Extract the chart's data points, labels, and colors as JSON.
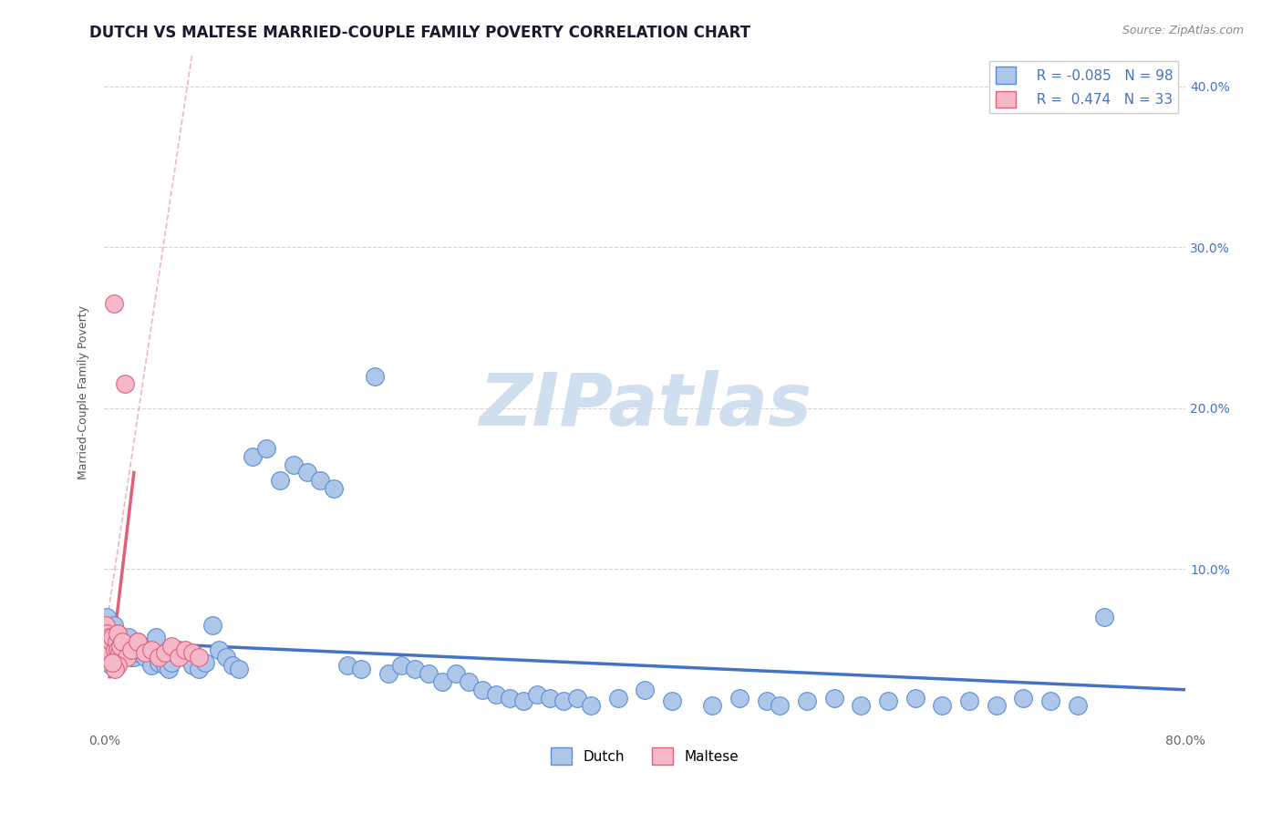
{
  "title": "DUTCH VS MALTESE MARRIED-COUPLE FAMILY POVERTY CORRELATION CHART",
  "source": "Source: ZipAtlas.com",
  "ylabel": "Married-Couple Family Poverty",
  "xlim": [
    0.0,
    0.8
  ],
  "ylim": [
    0.0,
    0.42
  ],
  "xticks": [
    0.0,
    0.1,
    0.2,
    0.3,
    0.4,
    0.5,
    0.6,
    0.7,
    0.8
  ],
  "xticklabels": [
    "0.0%",
    "",
    "",
    "",
    "",
    "",
    "",
    "",
    "80.0%"
  ],
  "yticks": [
    0.0,
    0.1,
    0.2,
    0.3,
    0.4
  ],
  "yticklabels_right": [
    "",
    "10.0%",
    "20.0%",
    "30.0%",
    "40.0%"
  ],
  "dutch_R": -0.085,
  "dutch_N": 98,
  "maltese_R": 0.474,
  "maltese_N": 33,
  "dutch_color": "#aec6e8",
  "dutch_edge_color": "#5b8dd9",
  "dutch_line_color": "#4472c4",
  "maltese_color": "#f5b8c8",
  "maltese_edge_color": "#e0607a",
  "maltese_line_color": "#e0607a",
  "diag_line_color": "#e8b0c0",
  "background_color": "#ffffff",
  "grid_color": "#d0d0d0",
  "title_fontsize": 12,
  "axis_label_fontsize": 9,
  "tick_fontsize": 10,
  "legend_fontsize": 11,
  "watermark_color": "#d0dff0",
  "dutch_x": [
    0.001,
    0.002,
    0.002,
    0.003,
    0.003,
    0.004,
    0.004,
    0.005,
    0.005,
    0.005,
    0.006,
    0.006,
    0.007,
    0.007,
    0.008,
    0.008,
    0.009,
    0.009,
    0.01,
    0.01,
    0.011,
    0.012,
    0.012,
    0.013,
    0.014,
    0.015,
    0.016,
    0.017,
    0.018,
    0.02,
    0.022,
    0.024,
    0.025,
    0.028,
    0.03,
    0.032,
    0.035,
    0.038,
    0.04,
    0.042,
    0.045,
    0.048,
    0.05,
    0.055,
    0.06,
    0.065,
    0.07,
    0.075,
    0.08,
    0.085,
    0.09,
    0.095,
    0.1,
    0.11,
    0.12,
    0.13,
    0.14,
    0.15,
    0.16,
    0.17,
    0.18,
    0.19,
    0.2,
    0.21,
    0.22,
    0.23,
    0.24,
    0.25,
    0.26,
    0.27,
    0.28,
    0.29,
    0.3,
    0.31,
    0.32,
    0.33,
    0.34,
    0.35,
    0.36,
    0.38,
    0.4,
    0.42,
    0.45,
    0.47,
    0.49,
    0.5,
    0.52,
    0.54,
    0.56,
    0.58,
    0.6,
    0.62,
    0.64,
    0.66,
    0.68,
    0.7,
    0.72,
    0.74
  ],
  "dutch_y": [
    0.065,
    0.06,
    0.07,
    0.055,
    0.058,
    0.062,
    0.045,
    0.06,
    0.04,
    0.055,
    0.05,
    0.058,
    0.065,
    0.05,
    0.06,
    0.055,
    0.058,
    0.05,
    0.052,
    0.06,
    0.058,
    0.052,
    0.055,
    0.058,
    0.052,
    0.048,
    0.055,
    0.05,
    0.058,
    0.045,
    0.045,
    0.048,
    0.055,
    0.05,
    0.045,
    0.048,
    0.04,
    0.058,
    0.042,
    0.045,
    0.04,
    0.038,
    0.042,
    0.05,
    0.045,
    0.04,
    0.038,
    0.042,
    0.065,
    0.05,
    0.045,
    0.04,
    0.038,
    0.17,
    0.175,
    0.155,
    0.165,
    0.16,
    0.155,
    0.15,
    0.04,
    0.038,
    0.22,
    0.035,
    0.04,
    0.038,
    0.035,
    0.03,
    0.035,
    0.03,
    0.025,
    0.022,
    0.02,
    0.018,
    0.022,
    0.02,
    0.018,
    0.02,
    0.015,
    0.02,
    0.025,
    0.018,
    0.015,
    0.02,
    0.018,
    0.015,
    0.018,
    0.02,
    0.015,
    0.018,
    0.02,
    0.015,
    0.018,
    0.015,
    0.02,
    0.018,
    0.015,
    0.07
  ],
  "maltese_x": [
    0.001,
    0.002,
    0.002,
    0.003,
    0.003,
    0.004,
    0.005,
    0.005,
    0.006,
    0.007,
    0.008,
    0.009,
    0.01,
    0.01,
    0.011,
    0.012,
    0.013,
    0.015,
    0.017,
    0.02,
    0.025,
    0.03,
    0.035,
    0.04,
    0.045,
    0.05,
    0.055,
    0.06,
    0.065,
    0.07,
    0.01,
    0.008,
    0.006
  ],
  "maltese_y": [
    0.065,
    0.055,
    0.06,
    0.055,
    0.05,
    0.058,
    0.055,
    0.055,
    0.058,
    0.265,
    0.05,
    0.055,
    0.06,
    0.05,
    0.048,
    0.052,
    0.055,
    0.215,
    0.045,
    0.05,
    0.055,
    0.048,
    0.05,
    0.045,
    0.048,
    0.052,
    0.045,
    0.05,
    0.048,
    0.045,
    0.04,
    0.038,
    0.042
  ]
}
